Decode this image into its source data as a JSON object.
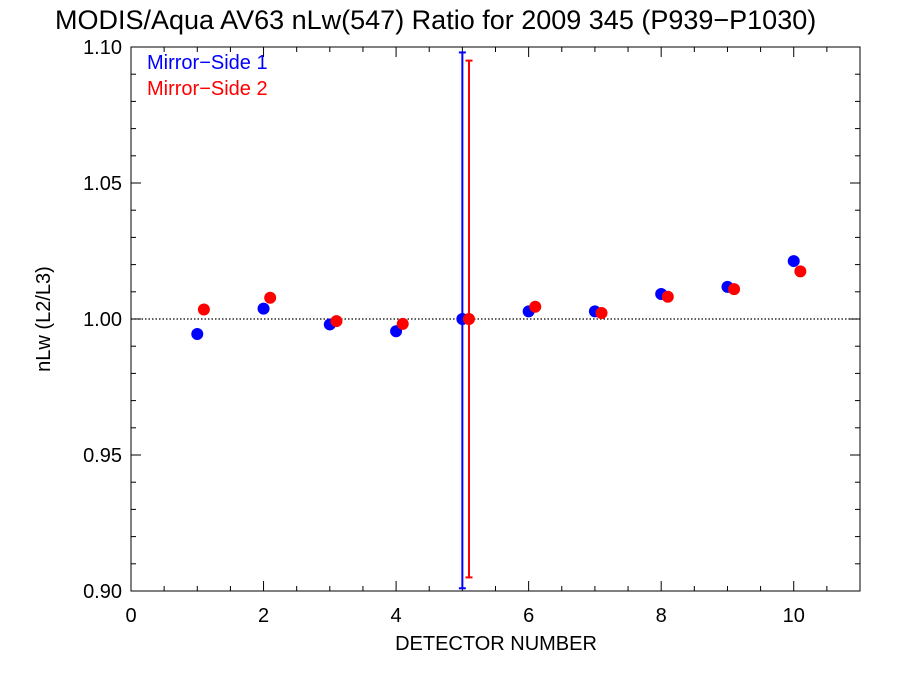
{
  "chart_data": {
    "type": "scatter",
    "title": "MODIS/Aqua AV63 nLw(547) Ratio for 2009 345 (P939−P1030)",
    "xlabel": "DETECTOR NUMBER",
    "ylabel": "nLw (L2/L3)",
    "xlim": [
      0,
      11
    ],
    "ylim": [
      0.9,
      1.1
    ],
    "x_ticks": [
      0,
      2,
      4,
      6,
      8,
      10
    ],
    "x_tick_labels": [
      "0",
      "2",
      "4",
      "6",
      "8",
      "10"
    ],
    "y_ticks": [
      0.9,
      0.95,
      1.0,
      1.05,
      1.1
    ],
    "y_tick_labels": [
      "0.90",
      "0.95",
      "1.00",
      "1.05",
      "1.10"
    ],
    "reference_line": {
      "y": 1.0,
      "style": "dotted"
    },
    "grid": false,
    "legend_position": "top-left",
    "series": [
      {
        "name": "Mirror−Side 1",
        "color": "#0000ff",
        "x": [
          1,
          2,
          3,
          4,
          5,
          6,
          7,
          8,
          9,
          10
        ],
        "values": [
          0.9945,
          1.0038,
          0.998,
          0.9955,
          1.0,
          1.0028,
          1.0028,
          1.0092,
          1.0118,
          1.0213
        ],
        "error_bar": {
          "x": 5,
          "low": 0.901,
          "high": 1.098
        }
      },
      {
        "name": "Mirror−Side 2",
        "color": "#ff0000",
        "x": [
          1.1,
          2.1,
          3.1,
          4.1,
          5.1,
          6.1,
          7.1,
          8.1,
          9.1,
          10.1
        ],
        "values": [
          1.0035,
          1.0078,
          0.9992,
          0.9982,
          1.0,
          1.0045,
          1.0022,
          1.0082,
          1.011,
          1.0175
        ],
        "error_bar": {
          "x": 5.1,
          "low": 0.905,
          "high": 1.095
        }
      }
    ]
  }
}
